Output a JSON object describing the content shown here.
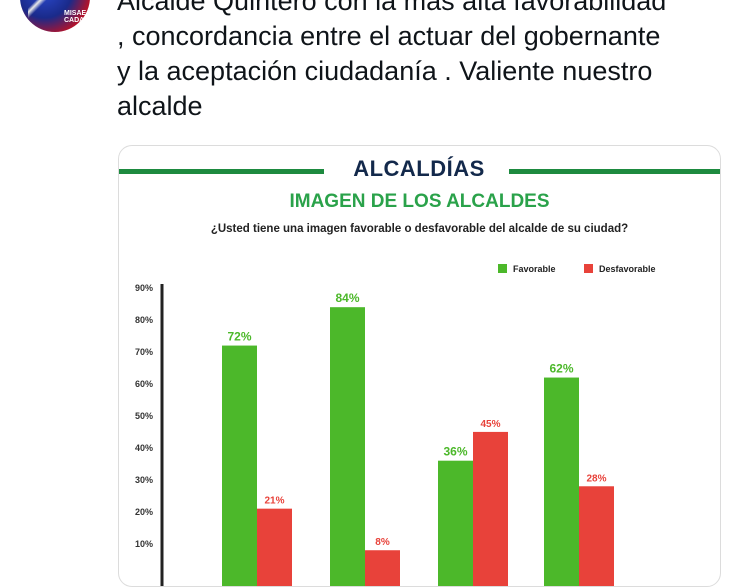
{
  "tweet": {
    "text": "Alcalde Quintero con la más alta favorabilidad\n, concordancia entre el actuar del gobernante\ny la aceptación ciudadanía . Valiente nuestro\nalcalde",
    "avatar_caption": "MISAE\nCADA"
  },
  "image": {
    "header": "ALCALDÍAS",
    "subtitle": "IMAGEN DE LOS ALCALDES",
    "question": "¿Usted tiene una imagen favorable o desfavorable del alcalde de su ciudad?"
  },
  "colors": {
    "favorable": "#4cb82a",
    "desfavorable": "#e8423a",
    "header_green": "#1d8a3f"
  },
  "chart_data": {
    "type": "bar",
    "categories": [
      "",
      "",
      "",
      ""
    ],
    "series": [
      {
        "name": "Favorable",
        "values": [
          72,
          84,
          36,
          62
        ],
        "labels": [
          "72%",
          "84%",
          "36%",
          "62%"
        ]
      },
      {
        "name": "Desfavorable",
        "values": [
          21,
          8,
          45,
          28
        ],
        "labels": [
          "21%",
          "8%",
          "45%",
          "28%"
        ]
      }
    ],
    "ylim": [
      0,
      90
    ],
    "yticks": [
      "10%",
      "20%",
      "30%",
      "40%",
      "50%",
      "60%",
      "70%",
      "80%",
      "90%"
    ],
    "legend_position": "top-right",
    "grid": false
  }
}
